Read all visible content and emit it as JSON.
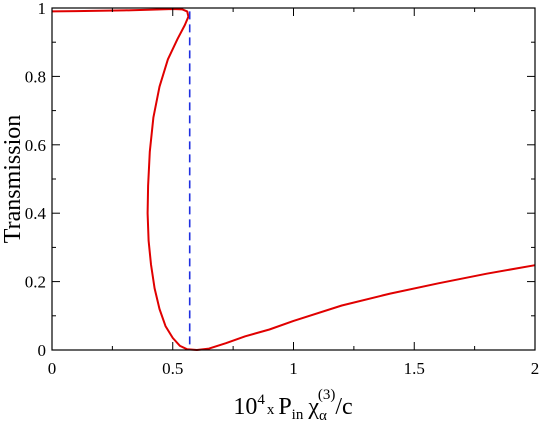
{
  "chart_data": {
    "type": "line",
    "ylabel": "Transmission",
    "xlabel": {
      "lead": "10",
      "lead_sup": "4",
      "x": "x",
      "P": "P",
      "P_sub": "in",
      "chi": "χ",
      "chi_sub": "α",
      "chi_sup": "(3)",
      "tail": "/c"
    },
    "xlim": [
      0,
      2
    ],
    "ylim": [
      0,
      1
    ],
    "xticks": [
      0,
      0.5,
      1,
      1.5,
      2
    ],
    "xtick_labels": [
      "0",
      "0.5",
      "1",
      "1.5",
      "2"
    ],
    "yticks": [
      0,
      0.2,
      0.4,
      0.6,
      0.8,
      1
    ],
    "ytick_labels": [
      "0",
      "0.2",
      "0.4",
      "0.6",
      "0.8",
      "1"
    ],
    "grid": false,
    "series": [
      {
        "color": "#e00000",
        "style": "solid",
        "points": [
          [
            0,
            0.99
          ],
          [
            0.1,
            0.991
          ],
          [
            0.2,
            0.992
          ],
          [
            0.3,
            0.993
          ],
          [
            0.4,
            0.995
          ],
          [
            0.5,
            0.997
          ],
          [
            0.54,
            0.996
          ],
          [
            0.56,
            0.99
          ],
          [
            0.565,
            0.975
          ],
          [
            0.55,
            0.95
          ],
          [
            0.52,
            0.91
          ],
          [
            0.48,
            0.85
          ],
          [
            0.445,
            0.77
          ],
          [
            0.42,
            0.68
          ],
          [
            0.405,
            0.58
          ],
          [
            0.398,
            0.48
          ],
          [
            0.396,
            0.4
          ],
          [
            0.4,
            0.32
          ],
          [
            0.41,
            0.25
          ],
          [
            0.425,
            0.18
          ],
          [
            0.445,
            0.12
          ],
          [
            0.47,
            0.07
          ],
          [
            0.5,
            0.035
          ],
          [
            0.53,
            0.012
          ],
          [
            0.56,
            0.002
          ],
          [
            0.6,
            0.0
          ],
          [
            0.65,
            0.004
          ],
          [
            0.72,
            0.02
          ],
          [
            0.8,
            0.04
          ],
          [
            0.9,
            0.06
          ],
          [
            1.0,
            0.085
          ],
          [
            1.2,
            0.13
          ],
          [
            1.4,
            0.165
          ],
          [
            1.6,
            0.195
          ],
          [
            1.8,
            0.223
          ],
          [
            2.0,
            0.248
          ]
        ]
      },
      {
        "color": "#1f2fe0",
        "style": "dashed",
        "points": [
          [
            0.57,
            0.99
          ],
          [
            0.57,
            0.0
          ]
        ]
      }
    ]
  }
}
